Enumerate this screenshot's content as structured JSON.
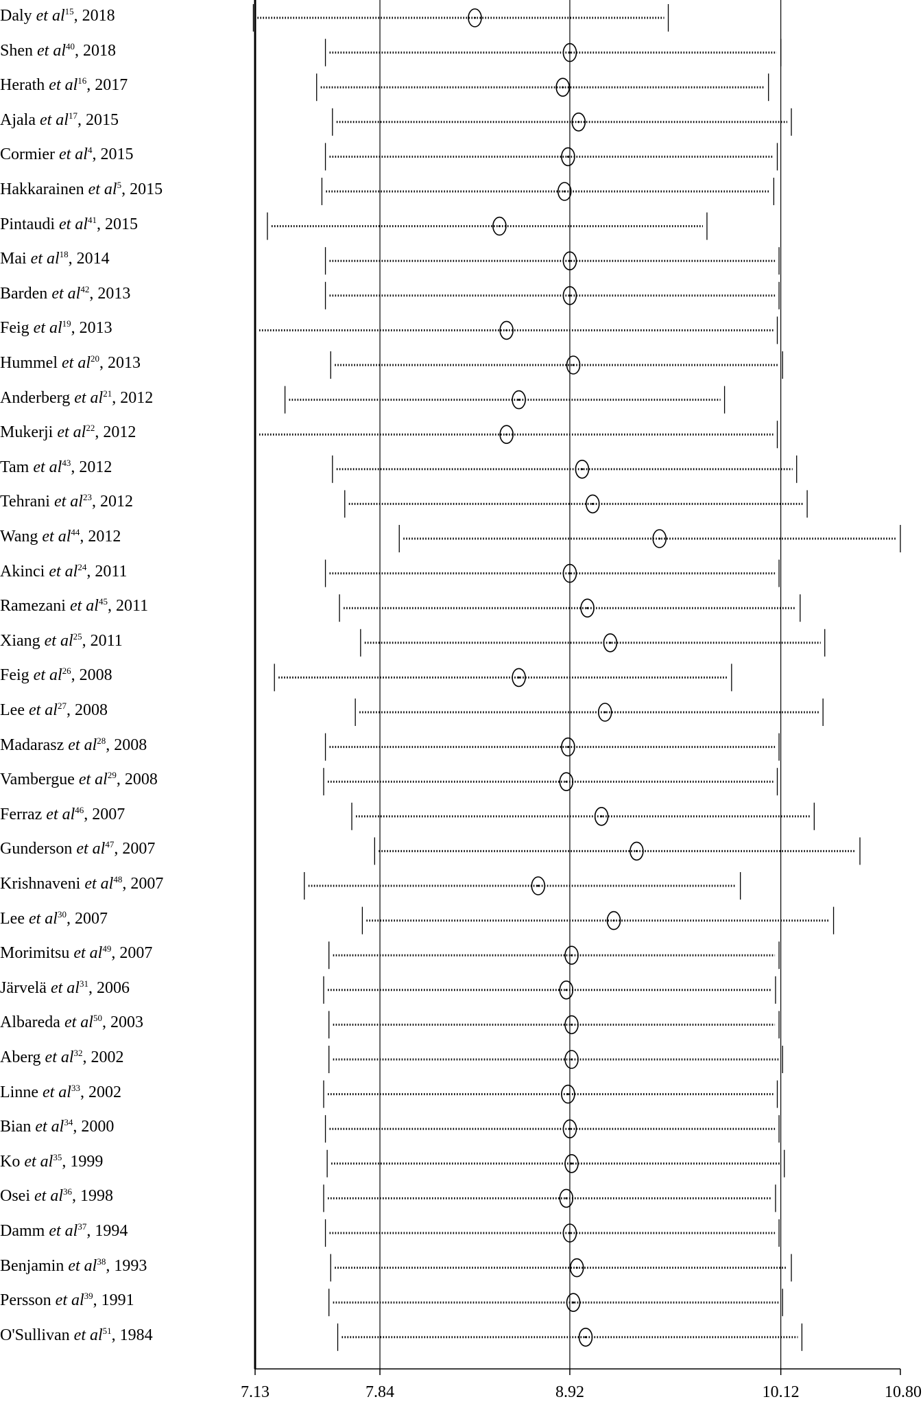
{
  "chart_data": {
    "type": "forest",
    "xlim": [
      7.13,
      10.8
    ],
    "x_ticks": [
      "7.13",
      "7.84",
      "8.92",
      "10.12",
      "10.80"
    ],
    "reference_lines": [
      7.84,
      8.92,
      10.12
    ],
    "series": [
      {
        "author": "Daly",
        "ref": "15",
        "year": "2018",
        "low": 7.12,
        "est": 8.38,
        "high": 9.48
      },
      {
        "author": "Shen",
        "ref": "40",
        "year": "2018",
        "low": 7.53,
        "est": 8.92,
        "high": 10.12
      },
      {
        "author": "Herath",
        "ref": "16",
        "year": "2017",
        "low": 7.48,
        "est": 8.88,
        "high": 10.05
      },
      {
        "author": "Ajala",
        "ref": "17",
        "year": "2015",
        "low": 7.57,
        "est": 8.97,
        "high": 10.18
      },
      {
        "author": "Cormier",
        "ref": "4",
        "year": "2015",
        "low": 7.53,
        "est": 8.91,
        "high": 10.1
      },
      {
        "author": "Hakkarainen",
        "ref": "5",
        "year": "2015",
        "low": 7.51,
        "est": 8.89,
        "high": 10.08
      },
      {
        "author": "Pintaudi",
        "ref": "41",
        "year": "2015",
        "low": 7.2,
        "est": 8.52,
        "high": 9.7
      },
      {
        "author": "Mai",
        "ref": "18",
        "year": "2014",
        "low": 7.53,
        "est": 8.92,
        "high": 10.11
      },
      {
        "author": "Barden",
        "ref": "42",
        "year": "2013",
        "low": 7.53,
        "est": 8.92,
        "high": 10.11
      },
      {
        "author": "Feig",
        "ref": "19",
        "year": "2013",
        "low": 7.13,
        "est": 8.56,
        "high": 10.1
      },
      {
        "author": "Hummel",
        "ref": "20",
        "year": "2013",
        "low": 7.56,
        "est": 8.94,
        "high": 10.13
      },
      {
        "author": "Anderberg",
        "ref": "21",
        "year": "2012",
        "low": 7.3,
        "est": 8.63,
        "high": 9.8
      },
      {
        "author": "Mukerji",
        "ref": "22",
        "year": "2012",
        "low": 7.13,
        "est": 8.56,
        "high": 10.1
      },
      {
        "author": "Tam",
        "ref": "43",
        "year": "2012",
        "low": 7.57,
        "est": 8.99,
        "high": 10.21
      },
      {
        "author": "Tehrani",
        "ref": "23",
        "year": "2012",
        "low": 7.64,
        "est": 9.05,
        "high": 10.27
      },
      {
        "author": "Wang",
        "ref": "44",
        "year": "2012",
        "low": 7.95,
        "est": 9.43,
        "high": 10.8
      },
      {
        "author": "Akinci",
        "ref": "24",
        "year": "2011",
        "low": 7.53,
        "est": 8.92,
        "high": 10.11
      },
      {
        "author": "Ramezani",
        "ref": "45",
        "year": "2011",
        "low": 7.61,
        "est": 9.02,
        "high": 10.23
      },
      {
        "author": "Xiang",
        "ref": "25",
        "year": "2011",
        "low": 7.73,
        "est": 9.15,
        "high": 10.37
      },
      {
        "author": "Feig",
        "ref": "26",
        "year": "2008",
        "low": 7.24,
        "est": 8.63,
        "high": 9.84
      },
      {
        "author": "Lee",
        "ref": "27",
        "year": "2008",
        "low": 7.7,
        "est": 9.12,
        "high": 10.36
      },
      {
        "author": "Madarasz",
        "ref": "28",
        "year": "2008",
        "low": 7.53,
        "est": 8.91,
        "high": 10.11
      },
      {
        "author": "Vambergue",
        "ref": "29",
        "year": "2008",
        "low": 7.52,
        "est": 8.9,
        "high": 10.1
      },
      {
        "author": "Ferraz",
        "ref": "46",
        "year": "2007",
        "low": 7.68,
        "est": 9.1,
        "high": 10.31
      },
      {
        "author": "Gunderson",
        "ref": "47",
        "year": "2007",
        "low": 7.81,
        "est": 9.3,
        "high": 10.57
      },
      {
        "author": "Krishnaveni",
        "ref": "48",
        "year": "2007",
        "low": 7.41,
        "est": 8.74,
        "high": 9.89
      },
      {
        "author": "Lee",
        "ref": "30",
        "year": "2007",
        "low": 7.74,
        "est": 9.17,
        "high": 10.42
      },
      {
        "author": "Morimitsu",
        "ref": "49",
        "year": "2007",
        "low": 7.55,
        "est": 8.93,
        "high": 10.11
      },
      {
        "author": "Järvelä",
        "ref": "31",
        "year": "2006",
        "low": 7.52,
        "est": 8.9,
        "high": 10.09
      },
      {
        "author": "Albareda",
        "ref": "50",
        "year": "2003",
        "low": 7.55,
        "est": 8.93,
        "high": 10.11
      },
      {
        "author": "Aberg",
        "ref": "32",
        "year": "2002",
        "low": 7.55,
        "est": 8.93,
        "high": 10.13
      },
      {
        "author": "Linne",
        "ref": "33",
        "year": "2002",
        "low": 7.52,
        "est": 8.91,
        "high": 10.1
      },
      {
        "author": "Bian",
        "ref": "34",
        "year": "2000",
        "low": 7.53,
        "est": 8.92,
        "high": 10.11
      },
      {
        "author": "Ko",
        "ref": "35",
        "year": "1999",
        "low": 7.54,
        "est": 8.93,
        "high": 10.14
      },
      {
        "author": "Osei",
        "ref": "36",
        "year": "1998",
        "low": 7.52,
        "est": 8.9,
        "high": 10.09
      },
      {
        "author": "Damm",
        "ref": "37",
        "year": "1994",
        "low": 7.53,
        "est": 8.92,
        "high": 10.11
      },
      {
        "author": "Benjamin",
        "ref": "38",
        "year": "1993",
        "low": 7.56,
        "est": 8.96,
        "high": 10.18
      },
      {
        "author": "Persson",
        "ref": "39",
        "year": "1991",
        "low": 7.55,
        "est": 8.94,
        "high": 10.13
      },
      {
        "author": "O'Sullivan",
        "ref": "51",
        "year": "1984",
        "low": 7.6,
        "est": 9.01,
        "high": 10.24
      }
    ]
  },
  "labels": {
    "et_al": "et al",
    "separator": ", "
  }
}
